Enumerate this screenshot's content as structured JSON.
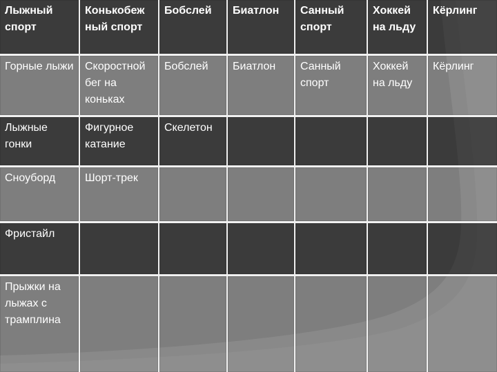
{
  "table": {
    "header": [
      "Лыжный спорт",
      "Конькобеж\nный спорт",
      "Бобслей",
      "Биатлон",
      "Санный спорт",
      "Хоккей на льду",
      "Кёрлинг"
    ],
    "body": [
      [
        "Горные лыжи",
        "Скоростной бег на коньках",
        "Бобслей",
        "Биатлон",
        "Санный спорт",
        "Хоккей на льду",
        "Кёрлинг"
      ],
      [
        "Лыжные гонки",
        "Фигурное катание",
        "Скелетон",
        "",
        "",
        "",
        ""
      ],
      [
        "Сноуборд",
        "Шорт-трек",
        "",
        "",
        "",
        "",
        ""
      ],
      [
        "Фристайл",
        "",
        "",
        "",
        "",
        "",
        ""
      ],
      [
        "Прыжки на лыжах с трамплина",
        "",
        "",
        "",
        "",
        "",
        ""
      ]
    ]
  },
  "colors": {
    "background_base": "#959595",
    "background_shape": "#6c6c6c",
    "background_shape_halo": "rgba(0,0,0,0.07)",
    "grid_line": "#f1f1f1",
    "cell_dark": "rgba(47,47,47,0.80)",
    "cell_light": "rgba(138,138,138,0.61)",
    "text_color": "#ffffff"
  }
}
